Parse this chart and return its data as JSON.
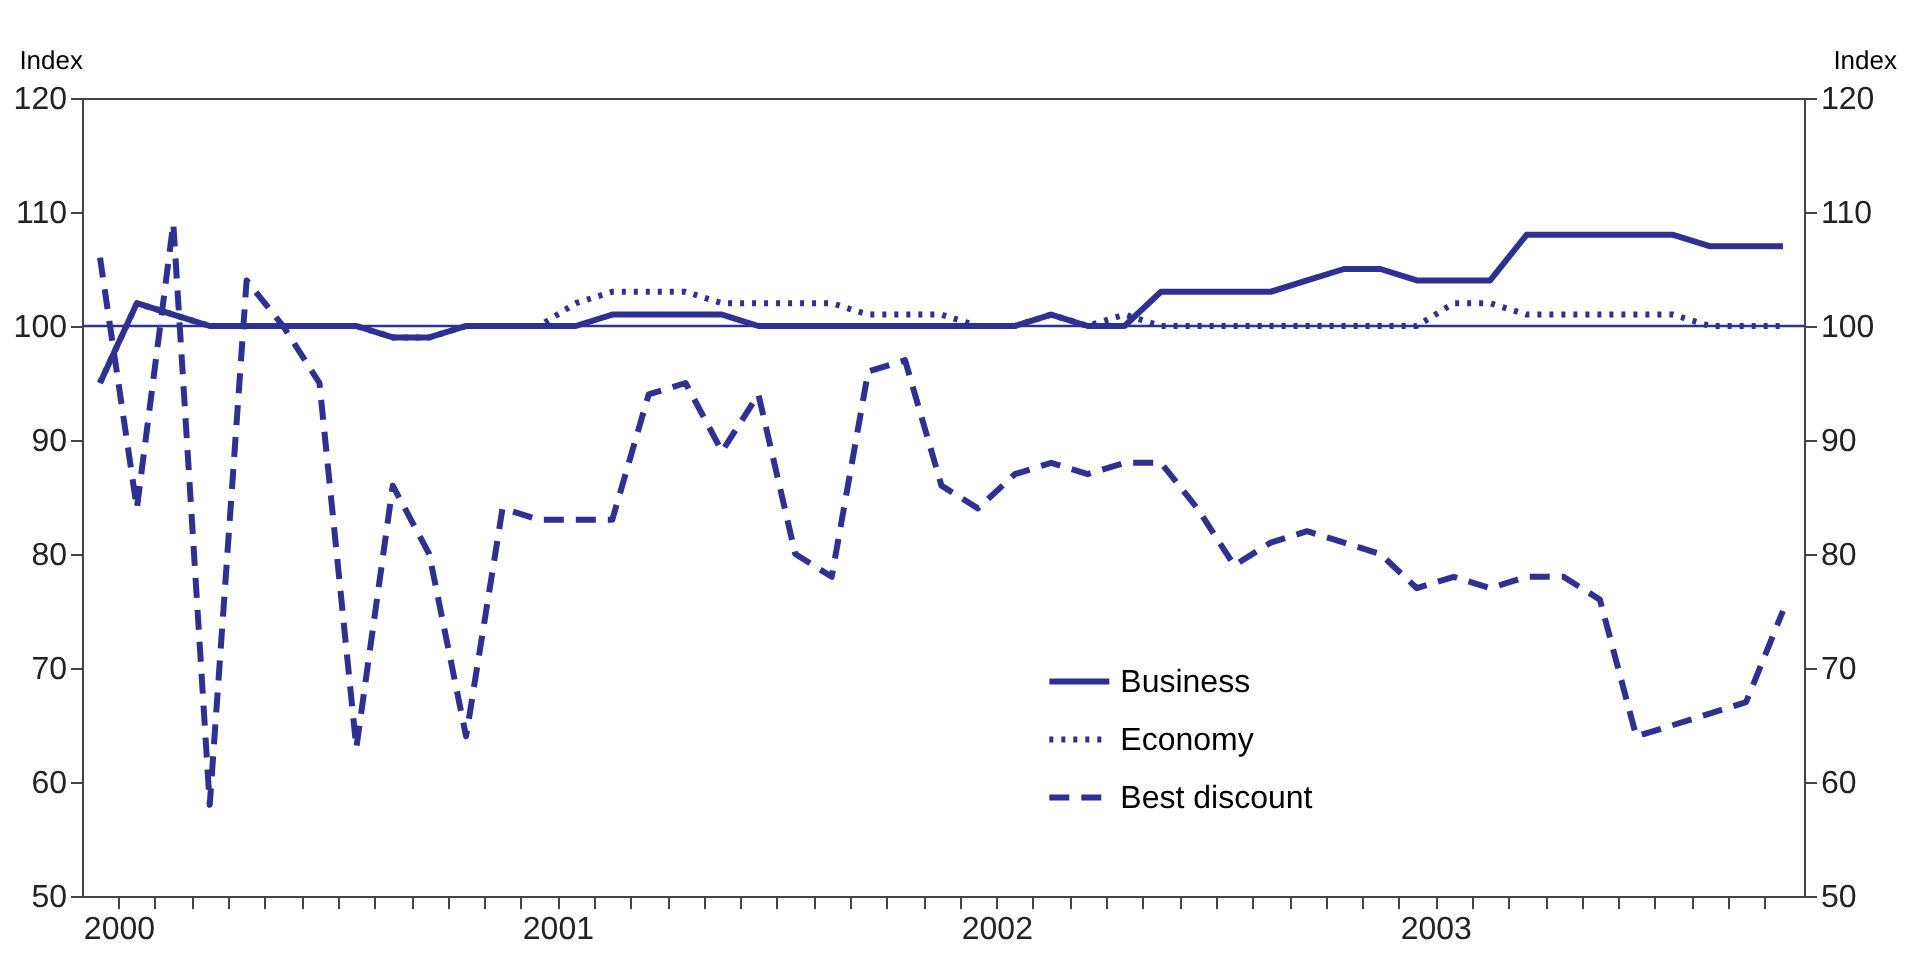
{
  "chart_data": {
    "type": "line",
    "ylabel": "Index",
    "y2label": "Index",
    "x": [
      1999.958,
      2000.042,
      2000.125,
      2000.208,
      2000.292,
      2000.375,
      2000.458,
      2000.542,
      2000.625,
      2000.708,
      2000.792,
      2000.875,
      2000.958,
      2001.042,
      2001.125,
      2001.208,
      2001.292,
      2001.375,
      2001.458,
      2001.542,
      2001.625,
      2001.708,
      2001.792,
      2001.875,
      2001.958,
      2002.042,
      2002.125,
      2002.208,
      2002.292,
      2002.375,
      2002.458,
      2002.542,
      2002.625,
      2002.708,
      2002.792,
      2002.875,
      2002.958,
      2003.042,
      2003.125,
      2003.208,
      2003.292,
      2003.375,
      2003.458,
      2003.542,
      2003.625,
      2003.708,
      2003.792
    ],
    "series": [
      {
        "name": "Business",
        "color": "#2e3192",
        "line_style": "solid",
        "values": [
          95,
          102,
          101,
          100,
          100,
          100,
          100,
          100,
          99,
          99,
          100,
          100,
          100,
          100,
          101,
          101,
          101,
          101,
          100,
          100,
          100,
          100,
          100,
          100,
          100,
          100,
          101,
          100,
          100,
          103,
          103,
          103,
          103,
          104,
          105,
          105,
          104,
          104,
          104,
          108,
          108,
          108,
          108,
          108,
          107,
          107,
          107
        ]
      },
      {
        "name": "Economy",
        "color": "#2e3192",
        "line_style": "dotted",
        "values": [
          95,
          102,
          101,
          100,
          100,
          100,
          100,
          100,
          99,
          99,
          100,
          100,
          100,
          102,
          103,
          103,
          103,
          102,
          102,
          102,
          102,
          101,
          101,
          101,
          100,
          100,
          101,
          100,
          101,
          100,
          100,
          100,
          100,
          100,
          100,
          100,
          100,
          102,
          102,
          101,
          101,
          101,
          101,
          101,
          100,
          100,
          100
        ]
      },
      {
        "name": "Best discount",
        "color": "#2e3192",
        "line_style": "dashed",
        "values": [
          106,
          84,
          109,
          58,
          104,
          100,
          95,
          63,
          86,
          80,
          64,
          84,
          83,
          83,
          83,
          94,
          95,
          89,
          94,
          80,
          78,
          96,
          97,
          86,
          84,
          87,
          88,
          87,
          88,
          88,
          84,
          79,
          81,
          82,
          81,
          80,
          77,
          78,
          77,
          78,
          78,
          76,
          64,
          65,
          66,
          67,
          75
        ]
      }
    ],
    "xlim": [
      1999.917,
      2003.84
    ],
    "xticks": [
      2000,
      {
        "value": 2000.083,
        "label": null
      },
      {
        "value": 2000.167,
        "label": null
      },
      {
        "value": 2000.25,
        "label": null
      },
      {
        "value": 2000.333,
        "label": null
      },
      {
        "value": 2000.417,
        "label": null
      },
      {
        "value": 2000.5,
        "label": null
      },
      {
        "value": 2000.583,
        "label": null
      },
      {
        "value": 2000.667,
        "label": null
      },
      {
        "value": 2000.75,
        "label": null
      },
      {
        "value": 2000.833,
        "label": null
      },
      {
        "value": 2000.917,
        "label": null
      },
      2001,
      {
        "value": 2001.083,
        "label": null
      },
      {
        "value": 2001.167,
        "label": null
      },
      {
        "value": 2001.25,
        "label": null
      },
      {
        "value": 2001.333,
        "label": null
      },
      {
        "value": 2001.417,
        "label": null
      },
      {
        "value": 2001.5,
        "label": null
      },
      {
        "value": 2001.583,
        "label": null
      },
      {
        "value": 2001.667,
        "label": null
      },
      {
        "value": 2001.75,
        "label": null
      },
      {
        "value": 2001.833,
        "label": null
      },
      {
        "value": 2001.917,
        "label": null
      },
      2002,
      {
        "value": 2002.083,
        "label": null
      },
      {
        "value": 2002.167,
        "label": null
      },
      {
        "value": 2002.25,
        "label": null
      },
      {
        "value": 2002.333,
        "label": null
      },
      {
        "value": 2002.417,
        "label": null
      },
      {
        "value": 2002.5,
        "label": null
      },
      {
        "value": 2002.583,
        "label": null
      },
      {
        "value": 2002.667,
        "label": null
      },
      {
        "value": 2002.75,
        "label": null
      },
      {
        "value": 2002.833,
        "label": null
      },
      {
        "value": 2002.917,
        "label": null
      },
      2003,
      {
        "value": 2003.083,
        "label": null
      },
      {
        "value": 2003.167,
        "label": null
      },
      {
        "value": 2003.25,
        "label": null
      },
      {
        "value": 2003.333,
        "label": null
      },
      {
        "value": 2003.417,
        "label": null
      },
      {
        "value": 2003.5,
        "label": null
      },
      {
        "value": 2003.583,
        "label": null
      },
      {
        "value": 2003.667,
        "label": null
      },
      {
        "value": 2003.75,
        "label": null
      }
    ],
    "ylim": [
      50,
      120
    ],
    "yticks": [
      50,
      60,
      70,
      80,
      90,
      100,
      110,
      120
    ],
    "y2lim": [
      50,
      120
    ],
    "y2ticks": [
      50,
      60,
      70,
      80,
      90,
      100,
      110,
      120
    ],
    "ref_lines": [
      {
        "axis": "y",
        "value": 100,
        "color": "#2e3192"
      }
    ],
    "grid": false,
    "legend": "bottom"
  }
}
